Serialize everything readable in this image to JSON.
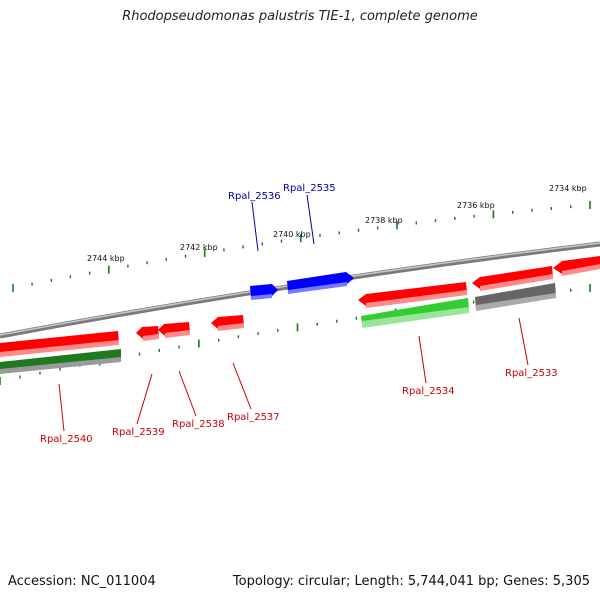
{
  "title": "Rhodopseudomonas palustris TIE-1, complete genome",
  "footer": {
    "accession": "Accession: NC_011004",
    "summary": "Topology: circular; Length: 5,744,041 bp; Genes: 5,305"
  },
  "colors": {
    "forward_gene": "#0000ff",
    "reverse_gene": "#ff0000",
    "rna_gene": "#33cc33",
    "dark_green_gene": "#1f7a1f",
    "pseudo_gene": "#666666",
    "backbone": "#888888",
    "tick": "#1a7a1a",
    "forward_label": "#0000aa",
    "reverse_label": "#cc0000"
  },
  "ruler": {
    "unit": "kbp",
    "ticks": [
      {
        "label": "2744 kbp"
      },
      {
        "label": "2742 kbp"
      },
      {
        "label": "2740 kbp"
      },
      {
        "label": "2738 kbp"
      },
      {
        "label": "2736 kbp"
      },
      {
        "label": "2734 kbp"
      }
    ]
  },
  "genes": [
    {
      "label": "Rpal_2535",
      "strand": "forward",
      "color": "blue"
    },
    {
      "label": "Rpal_2536",
      "strand": "forward",
      "color": "blue"
    },
    {
      "label": "Rpal_2533",
      "strand": "reverse",
      "color": "red"
    },
    {
      "label": "Rpal_2534",
      "strand": "reverse",
      "color": "red"
    },
    {
      "label": "Rpal_2537",
      "strand": "reverse",
      "color": "red"
    },
    {
      "label": "Rpal_2538",
      "strand": "reverse",
      "color": "red"
    },
    {
      "label": "Rpal_2539",
      "strand": "reverse",
      "color": "red"
    },
    {
      "label": "Rpal_2540",
      "strand": "reverse",
      "color": "red"
    }
  ]
}
